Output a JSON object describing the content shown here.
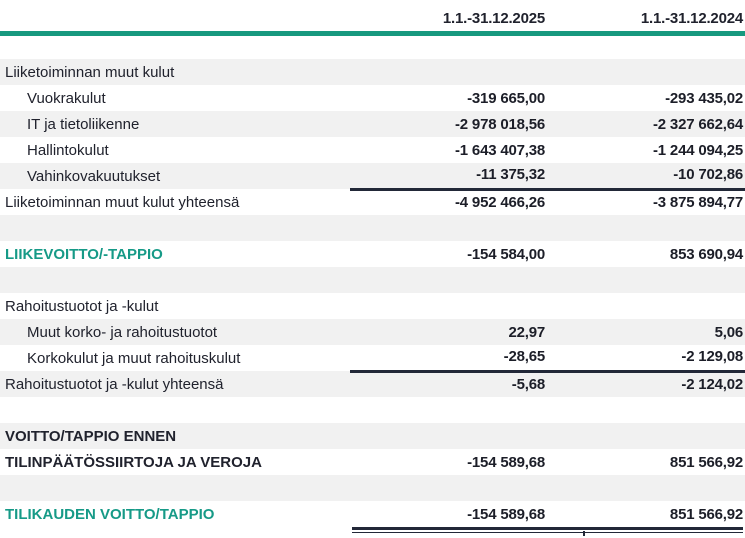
{
  "columns": {
    "period_2025": "1.1.-31.12.2025",
    "period_2024": "1.1.-31.12.2024"
  },
  "colors": {
    "accent_teal": "#17997F",
    "teal_text": "#169A87",
    "band_gray": "#F1F1F1",
    "text_dark": "#20222D",
    "rule_dark": "#222838"
  },
  "rows": [
    {
      "label": "Liiketoiminnan muut kulut",
      "v2025": "",
      "v2024": "",
      "style": "section",
      "indent": false,
      "band": true,
      "underline": false
    },
    {
      "label": "Vuokrakulut",
      "v2025": "-319 665,00",
      "v2024": "-293 435,02",
      "style": "item",
      "indent": true,
      "band": false,
      "underline": false
    },
    {
      "label": "IT ja tietoliikenne",
      "v2025": "-2 978 018,56",
      "v2024": "-2 327 662,64",
      "style": "item",
      "indent": true,
      "band": true,
      "underline": false
    },
    {
      "label": "Hallintokulut",
      "v2025": "-1 643 407,38",
      "v2024": "-1 244 094,25",
      "style": "item",
      "indent": true,
      "band": false,
      "underline": false
    },
    {
      "label": "Vahinkovakuutukset",
      "v2025": "-11 375,32",
      "v2024": "-10 702,86",
      "style": "item",
      "indent": true,
      "band": true,
      "underline": true
    },
    {
      "label": "Liiketoiminnan muut kulut yhteensä",
      "v2025": "-4 952 466,26",
      "v2024": "-3 875 894,77",
      "style": "total",
      "indent": false,
      "band": false,
      "underline": false
    },
    {
      "label": "",
      "v2025": "",
      "v2024": "",
      "style": "empty",
      "indent": false,
      "band": true,
      "underline": false
    },
    {
      "label": "LIIKEVOITTO/-TAPPIO",
      "v2025": "-154 584,00",
      "v2024": "853 690,94",
      "style": "tealbold",
      "indent": false,
      "band": false,
      "underline": false
    },
    {
      "label": "",
      "v2025": "",
      "v2024": "",
      "style": "empty",
      "indent": false,
      "band": true,
      "underline": false
    },
    {
      "label": "Rahoitustuotot ja -kulut",
      "v2025": "",
      "v2024": "",
      "style": "section",
      "indent": false,
      "band": false,
      "underline": false
    },
    {
      "label": "Muut korko- ja rahoitustuotot",
      "v2025": "22,97",
      "v2024": "5,06",
      "style": "item",
      "indent": true,
      "band": true,
      "underline": false
    },
    {
      "label": "Korkokulut ja muut rahoituskulut",
      "v2025": "-28,65",
      "v2024": "-2 129,08",
      "style": "item",
      "indent": true,
      "band": false,
      "underline": true
    },
    {
      "label": "Rahoitustuotot ja -kulut yhteensä",
      "v2025": "-5,68",
      "v2024": "-2 124,02",
      "style": "total",
      "indent": false,
      "band": true,
      "underline": false
    },
    {
      "label": "",
      "v2025": "",
      "v2024": "",
      "style": "empty",
      "indent": false,
      "band": false,
      "underline": false
    },
    {
      "label": "VOITTO/TAPPIO ENNEN",
      "v2025": "",
      "v2024": "",
      "style": "boldcaps",
      "indent": false,
      "band": true,
      "underline": false
    },
    {
      "label": "TILINPÄÄTÖSSIIRTOJA JA VEROJA",
      "v2025": "-154 589,68",
      "v2024": "851 566,92",
      "style": "boldcaps",
      "indent": false,
      "band": false,
      "underline": false
    },
    {
      "label": "",
      "v2025": "",
      "v2024": "",
      "style": "empty",
      "indent": false,
      "band": true,
      "underline": false
    },
    {
      "label": "TILIKAUDEN VOITTO/TAPPIO",
      "v2025": "-154 589,68",
      "v2024": "851 566,92",
      "style": "tealbold",
      "indent": false,
      "band": false,
      "underline": false
    }
  ]
}
